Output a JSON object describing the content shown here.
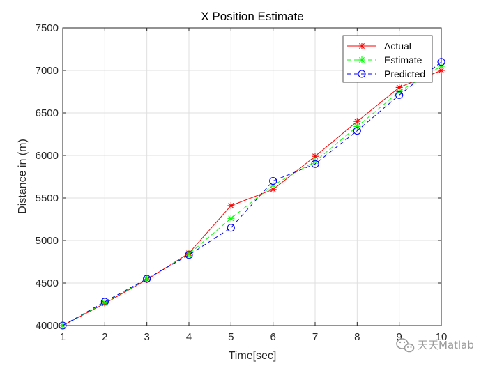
{
  "chart_data": {
    "type": "line",
    "title": "X Position Estimate",
    "xlabel": "Time[sec]",
    "ylabel": "Distance in (m)",
    "x": [
      1,
      2,
      3,
      4,
      5,
      6,
      7,
      8,
      9,
      10
    ],
    "xlim": [
      1,
      10
    ],
    "ylim": [
      4000,
      7500
    ],
    "xticks": [
      1,
      2,
      3,
      4,
      5,
      6,
      7,
      8,
      9,
      10
    ],
    "yticks": [
      4000,
      4500,
      5000,
      5500,
      6000,
      6500,
      7000,
      7500
    ],
    "grid": true,
    "legend_position": "top-right",
    "series": [
      {
        "name": "Actual",
        "values": [
          4000,
          4260,
          4540,
          4850,
          5410,
          5600,
          5990,
          6400,
          6800,
          7000
        ],
        "color": "#ff0000",
        "line_style": "solid",
        "marker": "asterisk"
      },
      {
        "name": "Estimate",
        "values": [
          4000,
          4270,
          4545,
          4840,
          5260,
          5650,
          5930,
          6340,
          6750,
          7050
        ],
        "color": "#00ff00",
        "line_style": "dashed",
        "marker": "asterisk"
      },
      {
        "name": "Predicted",
        "values": [
          4000,
          4280,
          4550,
          4830,
          5150,
          5700,
          5900,
          6290,
          6710,
          7100
        ],
        "color": "#0000ff",
        "line_style": "dashed",
        "marker": "circle"
      }
    ]
  },
  "watermark": {
    "text": "天天Matlab",
    "icon": "wechat-icon"
  }
}
